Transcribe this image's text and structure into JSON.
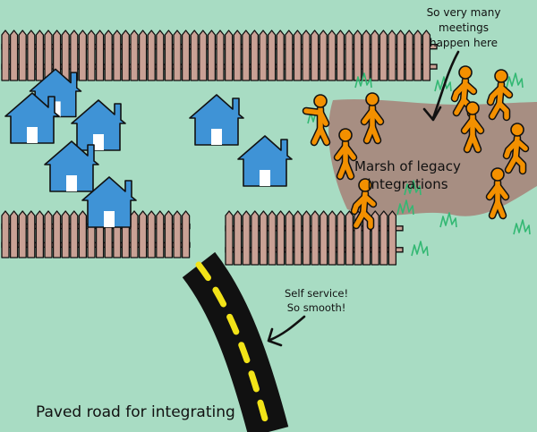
{
  "annotations": {
    "meetings": [
      "So very many",
      "meetings",
      "happen here"
    ],
    "marsh": [
      "Marsh of legacy",
      "integrations"
    ],
    "self_service": [
      "Self service!",
      "So smooth!"
    ],
    "paved_road": "Paved road for integrating"
  },
  "colors": {
    "grass": "#a8dcc3",
    "fence": "#c9a195",
    "house": "#3f93d6",
    "marsh": "#a7796f",
    "road": "#111111",
    "road_dash": "#f2e318",
    "person": "#f39000",
    "grass_tuft": "#33b873"
  },
  "icons": {
    "house": "house-icon",
    "person": "person-icon",
    "fence": "picket-fence",
    "tuft": "grass-tuft-icon",
    "arrow": "curved-arrow"
  }
}
